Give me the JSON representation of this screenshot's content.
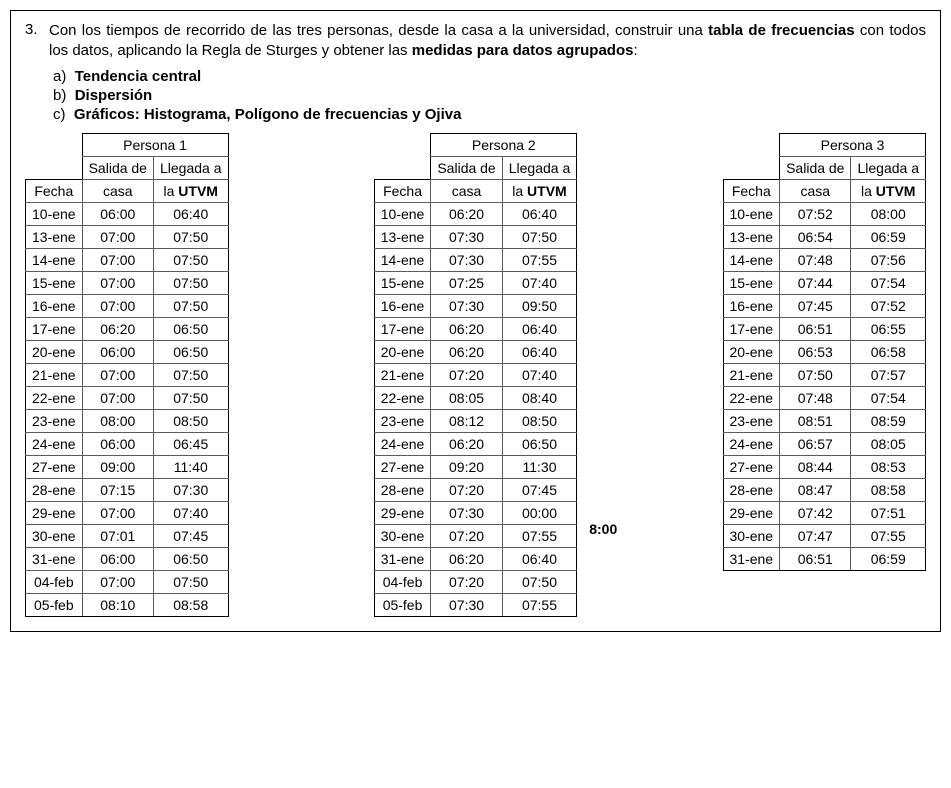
{
  "question": {
    "number": "3.",
    "text_part1": "Con los tiempos de recorrido de las tres personas, desde la casa a la universidad, construir una ",
    "bold1": "tabla de frecuencias",
    "text_part2": " con todos los datos, aplicando la Regla de Sturges y obtener las ",
    "bold2": "medidas para datos agrupados",
    "text_part3": ":"
  },
  "sublist": {
    "a_letter": "a)",
    "a_text": "Tendencia central",
    "b_letter": "b)",
    "b_text": "Dispersión",
    "c_letter": "c)",
    "c_text": "Gráficos: Histograma, Polígono de frecuencias y Ojiva"
  },
  "headers": {
    "fecha": "Fecha",
    "salida": "Salida de",
    "llegada": "Llegada a",
    "casa": "casa",
    "utvm": "la UTVM"
  },
  "persons": [
    {
      "title": "Persona 1",
      "rows": [
        [
          "10-ene",
          "06:00",
          "06:40"
        ],
        [
          "13-ene",
          "07:00",
          "07:50"
        ],
        [
          "14-ene",
          "07:00",
          "07:50"
        ],
        [
          "15-ene",
          "07:00",
          "07:50"
        ],
        [
          "16-ene",
          "07:00",
          "07:50"
        ],
        [
          "17-ene",
          "06:20",
          "06:50"
        ],
        [
          "20-ene",
          "06:00",
          "06:50"
        ],
        [
          "21-ene",
          "07:00",
          "07:50"
        ],
        [
          "22-ene",
          "07:00",
          "07:50"
        ],
        [
          "23-ene",
          "08:00",
          "08:50"
        ],
        [
          "24-ene",
          "06:00",
          "06:45"
        ],
        [
          "27-ene",
          "09:00",
          "11:40"
        ],
        [
          "28-ene",
          "07:15",
          "07:30"
        ],
        [
          "29-ene",
          "07:00",
          "07:40"
        ],
        [
          "30-ene",
          "07:01",
          "07:45"
        ],
        [
          "31-ene",
          "06:00",
          "06:50"
        ],
        [
          "04-feb",
          "07:00",
          "07:50"
        ],
        [
          "05-feb",
          "08:10",
          "08:58"
        ]
      ]
    },
    {
      "title": "Persona 2",
      "rows": [
        [
          "10-ene",
          "06:20",
          "06:40"
        ],
        [
          "13-ene",
          "07:30",
          "07:50"
        ],
        [
          "14-ene",
          "07:30",
          "07:55"
        ],
        [
          "15-ene",
          "07:25",
          "07:40"
        ],
        [
          "16-ene",
          "07:30",
          "09:50"
        ],
        [
          "17-ene",
          "06:20",
          "06:40"
        ],
        [
          "20-ene",
          "06:20",
          "06:40"
        ],
        [
          "21-ene",
          "07:20",
          "07:40"
        ],
        [
          "22-ene",
          "08:05",
          "08:40"
        ],
        [
          "23-ene",
          "08:12",
          "08:50"
        ],
        [
          "24-ene",
          "06:20",
          "06:50"
        ],
        [
          "27-ene",
          "09:20",
          "11:30"
        ],
        [
          "28-ene",
          "07:20",
          "07:45"
        ],
        [
          "29-ene",
          "07:30",
          "00:00"
        ],
        [
          "30-ene",
          "07:20",
          "07:55"
        ],
        [
          "31-ene",
          "06:20",
          "06:40"
        ],
        [
          "04-feb",
          "07:20",
          "07:50"
        ],
        [
          "05-feb",
          "07:30",
          "07:55"
        ]
      ],
      "annotation": {
        "text": "8:00",
        "row_index": 13
      }
    },
    {
      "title": "Persona 3",
      "rows": [
        [
          "10-ene",
          "07:52",
          "08:00"
        ],
        [
          "13-ene",
          "06:54",
          "06:59"
        ],
        [
          "14-ene",
          "07:48",
          "07:56"
        ],
        [
          "15-ene",
          "07:44",
          "07:54"
        ],
        [
          "16-ene",
          "07:45",
          "07:52"
        ],
        [
          "17-ene",
          "06:51",
          "06:55"
        ],
        [
          "20-ene",
          "06:53",
          "06:58"
        ],
        [
          "21-ene",
          "07:50",
          "07:57"
        ],
        [
          "22-ene",
          "07:48",
          "07:54"
        ],
        [
          "23-ene",
          "08:51",
          "08:59"
        ],
        [
          "24-ene",
          "06:57",
          "08:05"
        ],
        [
          "27-ene",
          "08:44",
          "08:53"
        ],
        [
          "28-ene",
          "08:47",
          "08:58"
        ],
        [
          "29-ene",
          "07:42",
          "07:51"
        ],
        [
          "30-ene",
          "07:47",
          "07:55"
        ],
        [
          "31-ene",
          "06:51",
          "06:59"
        ]
      ]
    }
  ]
}
